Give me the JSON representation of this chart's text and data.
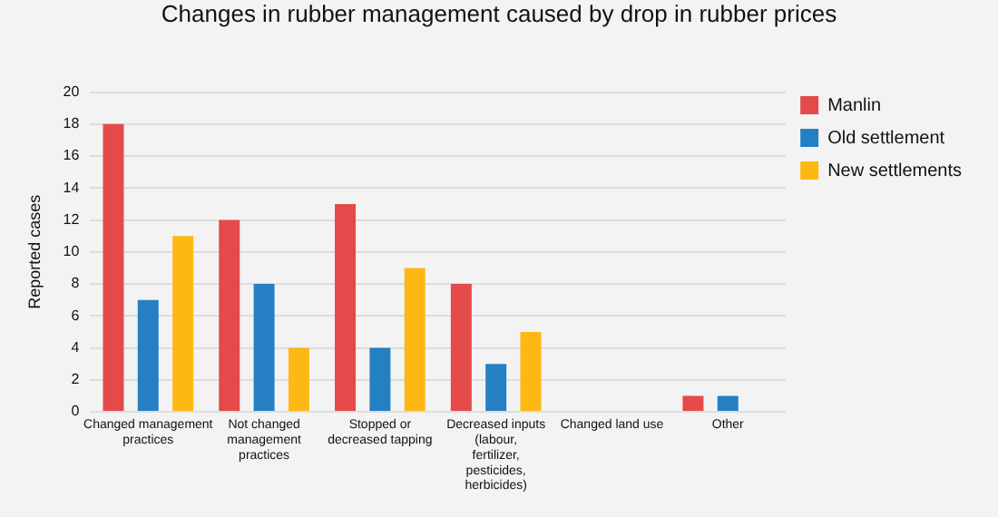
{
  "chart_data": {
    "type": "bar",
    "title": "Changes in rubber management caused by drop in rubber prices",
    "ylabel": "Reported cases",
    "categories": [
      "Changed management practices",
      "Not changed management practices",
      "Stopped or decreased tapping",
      "Decreased inputs (labour, fertilizer, pesticides, herbicides)",
      "Changed land use",
      "Other"
    ],
    "series": [
      {
        "name": "Manlin",
        "color": "#e44a4a",
        "values": [
          18,
          12,
          13,
          8,
          0,
          1
        ]
      },
      {
        "name": "Old settlement",
        "color": "#2580c3",
        "values": [
          7,
          8,
          4,
          3,
          0,
          1
        ]
      },
      {
        "name": "New settlements",
        "color": "#fdb813",
        "values": [
          11,
          4,
          9,
          5,
          0,
          0
        ]
      }
    ],
    "ylim": [
      0,
      20
    ],
    "yticks": [
      0,
      2,
      4,
      6,
      8,
      10,
      12,
      14,
      16,
      18,
      20
    ],
    "grid": "y",
    "legend": "top right"
  }
}
